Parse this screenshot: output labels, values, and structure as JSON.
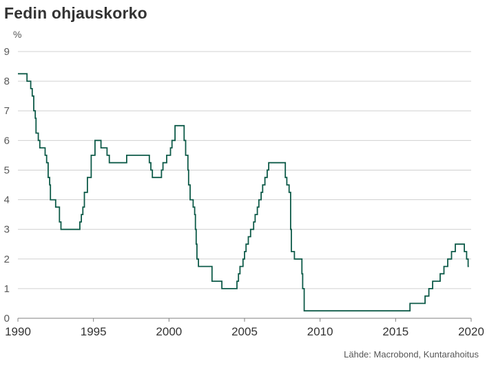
{
  "chart_data": {
    "type": "line",
    "title": "Fedin ohjauskorko",
    "ylabel": "%",
    "source": "Lähde: Macrobond, Kuntarahoitus",
    "xlim": [
      1990,
      2020
    ],
    "ylim": [
      0,
      9
    ],
    "yticks": [
      0,
      1,
      2,
      3,
      4,
      5,
      6,
      7,
      8,
      9
    ],
    "xticks": [
      1990,
      1995,
      2000,
      2005,
      2010,
      2015,
      2020
    ],
    "grid": true,
    "line_color": "#0d5a48",
    "series": [
      {
        "step": true,
        "points": [
          [
            1990.0,
            8.25
          ],
          [
            1990.6,
            8.0
          ],
          [
            1990.85,
            7.75
          ],
          [
            1990.95,
            7.5
          ],
          [
            1991.05,
            7.0
          ],
          [
            1991.15,
            6.75
          ],
          [
            1991.2,
            6.25
          ],
          [
            1991.35,
            6.0
          ],
          [
            1991.45,
            5.75
          ],
          [
            1991.8,
            5.5
          ],
          [
            1991.9,
            5.25
          ],
          [
            1992.0,
            4.75
          ],
          [
            1992.1,
            4.5
          ],
          [
            1992.15,
            4.0
          ],
          [
            1992.5,
            3.75
          ],
          [
            1992.75,
            3.25
          ],
          [
            1992.85,
            3.0
          ],
          [
            1994.1,
            3.25
          ],
          [
            1994.2,
            3.5
          ],
          [
            1994.3,
            3.75
          ],
          [
            1994.4,
            4.25
          ],
          [
            1994.6,
            4.75
          ],
          [
            1994.85,
            5.5
          ],
          [
            1995.1,
            6.0
          ],
          [
            1995.5,
            5.75
          ],
          [
            1995.9,
            5.5
          ],
          [
            1996.05,
            5.25
          ],
          [
            1997.2,
            5.5
          ],
          [
            1998.7,
            5.25
          ],
          [
            1998.8,
            5.0
          ],
          [
            1998.9,
            4.75
          ],
          [
            1999.5,
            5.0
          ],
          [
            1999.6,
            5.25
          ],
          [
            1999.85,
            5.5
          ],
          [
            2000.1,
            5.75
          ],
          [
            2000.2,
            6.0
          ],
          [
            2000.4,
            6.5
          ],
          [
            2001.0,
            6.0
          ],
          [
            2001.1,
            5.5
          ],
          [
            2001.25,
            5.0
          ],
          [
            2001.3,
            4.5
          ],
          [
            2001.4,
            4.0
          ],
          [
            2001.6,
            3.75
          ],
          [
            2001.7,
            3.5
          ],
          [
            2001.75,
            3.0
          ],
          [
            2001.8,
            2.5
          ],
          [
            2001.85,
            2.0
          ],
          [
            2001.95,
            1.75
          ],
          [
            2002.85,
            1.25
          ],
          [
            2003.5,
            1.0
          ],
          [
            2004.5,
            1.25
          ],
          [
            2004.6,
            1.5
          ],
          [
            2004.7,
            1.75
          ],
          [
            2004.9,
            2.0
          ],
          [
            2005.0,
            2.25
          ],
          [
            2005.1,
            2.5
          ],
          [
            2005.25,
            2.75
          ],
          [
            2005.4,
            3.0
          ],
          [
            2005.6,
            3.25
          ],
          [
            2005.7,
            3.5
          ],
          [
            2005.85,
            3.75
          ],
          [
            2005.95,
            4.0
          ],
          [
            2006.1,
            4.25
          ],
          [
            2006.2,
            4.5
          ],
          [
            2006.35,
            4.75
          ],
          [
            2006.5,
            5.0
          ],
          [
            2006.6,
            5.25
          ],
          [
            2007.7,
            4.75
          ],
          [
            2007.8,
            4.5
          ],
          [
            2007.95,
            4.25
          ],
          [
            2008.05,
            3.0
          ],
          [
            2008.1,
            2.25
          ],
          [
            2008.3,
            2.0
          ],
          [
            2008.8,
            1.5
          ],
          [
            2008.85,
            1.0
          ],
          [
            2008.95,
            0.25
          ],
          [
            2015.95,
            0.5
          ],
          [
            2016.95,
            0.75
          ],
          [
            2017.2,
            1.0
          ],
          [
            2017.45,
            1.25
          ],
          [
            2017.95,
            1.5
          ],
          [
            2018.2,
            1.75
          ],
          [
            2018.45,
            2.0
          ],
          [
            2018.7,
            2.25
          ],
          [
            2018.95,
            2.5
          ],
          [
            2019.55,
            2.25
          ],
          [
            2019.7,
            2.0
          ],
          [
            2019.8,
            1.75
          ],
          [
            2019.85,
            1.75
          ]
        ]
      }
    ]
  }
}
